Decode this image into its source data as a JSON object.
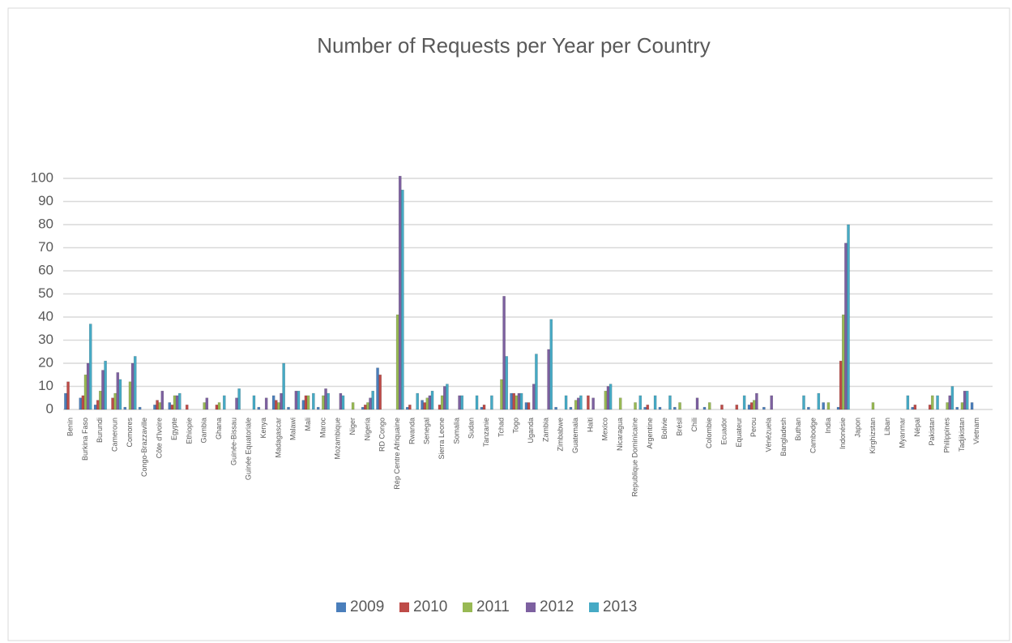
{
  "chart_data": {
    "type": "bar",
    "title": "Number of Requests per Year per Country",
    "categories": [
      "Benin",
      "Burkina Faso",
      "Burundi",
      "Cameroun",
      "Comores",
      "Congo-Brazzaville",
      "Côte d'Ivoire",
      "Egypte",
      "Ethiopie",
      "Gambia",
      "Ghana",
      "Guinée-Bissau",
      "Guinée Equatoriale",
      "Kenya",
      "Madagascar",
      "Malawi",
      "Mali",
      "Maroc",
      "Mozambique",
      "Niger",
      "Nigeria",
      "RD Congo",
      "Rép Centre Afriquaine",
      "Rwanda",
      "Senegal",
      "Sierra Leone",
      "Somalia",
      "Sudan",
      "Tanzanie",
      "Tchad",
      "Togo",
      "Uganda",
      "Zambia",
      "Zimbabwe",
      "Guatemala",
      "Haiti",
      "Mexico",
      "Nicaragua",
      "Republique Dominicaine",
      "Argentine",
      "Bolivie",
      "Brésil",
      "Chili",
      "Colombie",
      "Ecuador",
      "Equateur",
      "Perou",
      "Vénézuela",
      "Bangladesh",
      "Buthan",
      "Cambodge",
      "India",
      "Indonésie",
      "Japon",
      "Kirghizstan",
      "Liban",
      "Myanmar",
      "Népal",
      "Pakistan",
      "Philippines",
      "Tadjikistan",
      "Vietnam"
    ],
    "series": [
      {
        "name": "2009",
        "color": "#4a7ebb",
        "values": [
          7,
          5,
          2,
          0,
          1,
          1,
          2,
          3,
          0,
          0,
          0,
          0,
          0,
          1,
          6,
          1,
          4,
          1,
          0,
          0,
          1,
          18,
          0,
          1,
          4,
          0,
          0,
          0,
          1,
          0,
          7,
          3,
          0,
          1,
          1,
          0,
          0,
          0,
          0,
          1,
          1,
          1,
          0,
          1,
          0,
          0,
          2,
          1,
          0,
          0,
          1,
          3,
          1,
          0,
          0,
          0,
          0,
          1,
          0,
          0,
          1,
          3
        ]
      },
      {
        "name": "2010",
        "color": "#be4b48",
        "values": [
          12,
          6,
          4,
          5,
          0,
          0,
          4,
          2,
          2,
          0,
          2,
          0,
          0,
          0,
          4,
          0,
          6,
          0,
          0,
          0,
          2,
          15,
          0,
          2,
          3,
          2,
          0,
          0,
          2,
          0,
          7,
          3,
          0,
          0,
          0,
          6,
          0,
          0,
          0,
          2,
          0,
          0,
          0,
          0,
          2,
          2,
          3,
          0,
          0,
          0,
          0,
          0,
          21,
          0,
          0,
          0,
          0,
          2,
          2,
          0,
          0,
          0
        ]
      },
      {
        "name": "2011",
        "color": "#98b954",
        "values": [
          0,
          15,
          8,
          7,
          12,
          0,
          3,
          6,
          0,
          3,
          3,
          0,
          0,
          0,
          3,
          0,
          6,
          6,
          0,
          3,
          3,
          0,
          41,
          0,
          5,
          6,
          0,
          0,
          0,
          13,
          6,
          0,
          0,
          0,
          4,
          0,
          8,
          5,
          3,
          0,
          0,
          3,
          0,
          3,
          0,
          0,
          4,
          0,
          0,
          0,
          0,
          3,
          41,
          0,
          3,
          0,
          0,
          0,
          6,
          3,
          3,
          0
        ]
      },
      {
        "name": "2012",
        "color": "#7d60a0",
        "values": [
          0,
          20,
          17,
          16,
          20,
          0,
          8,
          6,
          0,
          5,
          0,
          5,
          0,
          5,
          7,
          8,
          0,
          9,
          7,
          0,
          5,
          0,
          101,
          0,
          6,
          10,
          6,
          0,
          0,
          49,
          7,
          11,
          26,
          0,
          5,
          5,
          10,
          0,
          0,
          0,
          0,
          0,
          5,
          0,
          0,
          0,
          7,
          6,
          0,
          0,
          0,
          0,
          72,
          0,
          0,
          0,
          0,
          0,
          0,
          6,
          8,
          0
        ]
      },
      {
        "name": "2013",
        "color": "#46aac5",
        "values": [
          0,
          37,
          21,
          13,
          23,
          0,
          0,
          7,
          0,
          0,
          6,
          9,
          6,
          0,
          20,
          8,
          7,
          7,
          6,
          0,
          8,
          0,
          95,
          7,
          8,
          11,
          6,
          6,
          6,
          23,
          7,
          24,
          39,
          6,
          6,
          0,
          11,
          0,
          6,
          6,
          6,
          0,
          0,
          0,
          0,
          6,
          0,
          0,
          0,
          6,
          7,
          0,
          80,
          0,
          0,
          0,
          6,
          0,
          6,
          10,
          8,
          0
        ]
      }
    ],
    "ylim": [
      0,
      100
    ],
    "yticks": [
      0,
      10,
      20,
      30,
      40,
      50,
      60,
      70,
      80,
      90,
      100
    ],
    "grid": true
  }
}
